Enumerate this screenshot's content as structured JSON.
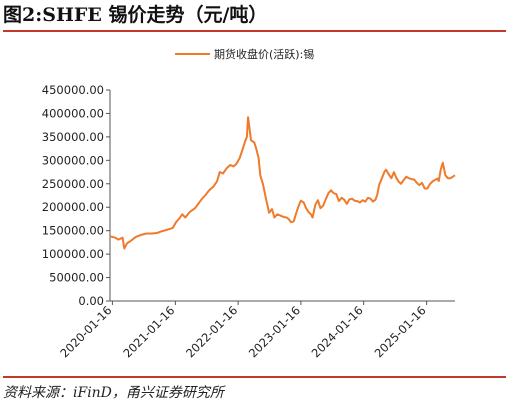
{
  "figure": {
    "title": "图2:SHFE 锡价走势（元/吨）",
    "source": "资料来源：iFinD，甬兴证券研究所"
  },
  "colors": {
    "series": "#f07a2a",
    "axis": "#555555",
    "accent": "#c0392b"
  },
  "chart_data": {
    "type": "line",
    "title": "",
    "xlabel": "",
    "ylabel": "",
    "legend_position": "top",
    "grid": false,
    "ylim": [
      0,
      450000
    ],
    "yticks": [
      "0.00",
      "50000.00",
      "100000.00",
      "150000.00",
      "200000.00",
      "250000.00",
      "300000.00",
      "350000.00",
      "400000.00",
      "450000.00"
    ],
    "xticks": [
      "2020-01-16",
      "2021-01-16",
      "2022-01-16",
      "2023-01-16",
      "2024-01-16",
      "2025-01-16"
    ],
    "x_range": [
      "2020-01-02",
      "2025-06-30"
    ],
    "series": [
      {
        "name": "期货收盘价(活跃):锡",
        "x": [
          "2020-01-02",
          "2020-02-01",
          "2020-02-20",
          "2020-03-15",
          "2020-03-25",
          "2020-04-10",
          "2020-05-01",
          "2020-06-01",
          "2020-07-01",
          "2020-08-01",
          "2020-09-01",
          "2020-10-01",
          "2020-11-01",
          "2020-12-01",
          "2021-01-01",
          "2021-01-20",
          "2021-02-10",
          "2021-02-25",
          "2021-03-15",
          "2021-04-10",
          "2021-05-10",
          "2021-05-25",
          "2021-06-20",
          "2021-07-10",
          "2021-08-01",
          "2021-08-25",
          "2021-09-15",
          "2021-10-01",
          "2021-10-20",
          "2021-11-10",
          "2021-12-01",
          "2021-12-20",
          "2022-01-05",
          "2022-01-25",
          "2022-02-10",
          "2022-02-25",
          "2022-03-08",
          "2022-03-15",
          "2022-04-01",
          "2022-04-20",
          "2022-05-01",
          "2022-05-15",
          "2022-05-25",
          "2022-06-10",
          "2022-06-25",
          "2022-07-15",
          "2022-08-01",
          "2022-08-15",
          "2022-09-01",
          "2022-09-20",
          "2022-10-10",
          "2022-10-25",
          "2022-11-05",
          "2022-11-20",
          "2022-12-05",
          "2022-12-20",
          "2023-01-05",
          "2023-01-16",
          "2023-02-01",
          "2023-02-15",
          "2023-03-01",
          "2023-03-15",
          "2023-03-25",
          "2023-04-10",
          "2023-04-25",
          "2023-05-10",
          "2023-05-25",
          "2023-06-10",
          "2023-06-25",
          "2023-07-10",
          "2023-07-25",
          "2023-08-10",
          "2023-08-25",
          "2023-09-10",
          "2023-09-25",
          "2023-10-10",
          "2023-10-25",
          "2023-11-10",
          "2023-11-25",
          "2023-12-10",
          "2023-12-25",
          "2024-01-10",
          "2024-01-25",
          "2024-02-10",
          "2024-02-25",
          "2024-03-10",
          "2024-03-25",
          "2024-04-05",
          "2024-04-15",
          "2024-05-01",
          "2024-05-15",
          "2024-05-25",
          "2024-06-10",
          "2024-06-25",
          "2024-07-10",
          "2024-07-25",
          "2024-08-05",
          "2024-08-20",
          "2024-09-05",
          "2024-09-20",
          "2024-10-05",
          "2024-10-20",
          "2024-11-05",
          "2024-11-20",
          "2024-12-05",
          "2024-12-20",
          "2025-01-05",
          "2025-01-20",
          "2025-02-05",
          "2025-02-20",
          "2025-03-05",
          "2025-03-20",
          "2025-03-28",
          "2025-04-08",
          "2025-04-20",
          "2025-05-05",
          "2025-05-20",
          "2025-06-05",
          "2025-06-20",
          "2025-06-30"
        ],
        "values": [
          138000,
          135000,
          131000,
          135000,
          112000,
          123000,
          128000,
          137000,
          141000,
          144000,
          144000,
          145000,
          149000,
          152000,
          156000,
          168000,
          177000,
          185000,
          178000,
          190000,
          198000,
          205000,
          218000,
          226000,
          236000,
          244000,
          255000,
          275000,
          272000,
          283000,
          290000,
          287000,
          292000,
          305000,
          322000,
          340000,
          350000,
          392000,
          343000,
          338000,
          325000,
          305000,
          268000,
          248000,
          222000,
          188000,
          196000,
          178000,
          185000,
          182000,
          179000,
          178000,
          175000,
          168000,
          170000,
          188000,
          205000,
          214000,
          210000,
          198000,
          190000,
          185000,
          178000,
          205000,
          215000,
          198000,
          203000,
          217000,
          230000,
          236000,
          230000,
          228000,
          213000,
          220000,
          216000,
          207000,
          217000,
          218000,
          214000,
          213000,
          210000,
          215000,
          212000,
          220000,
          218000,
          212000,
          216000,
          228000,
          248000,
          262000,
          275000,
          280000,
          270000,
          262000,
          275000,
          262000,
          255000,
          250000,
          258000,
          265000,
          262000,
          260000,
          259000,
          252000,
          247000,
          252000,
          240000,
          240000,
          250000,
          255000,
          258000,
          261000,
          256000,
          280000,
          295000,
          268000,
          262000,
          262000,
          266000,
          268000
        ]
      }
    ]
  }
}
